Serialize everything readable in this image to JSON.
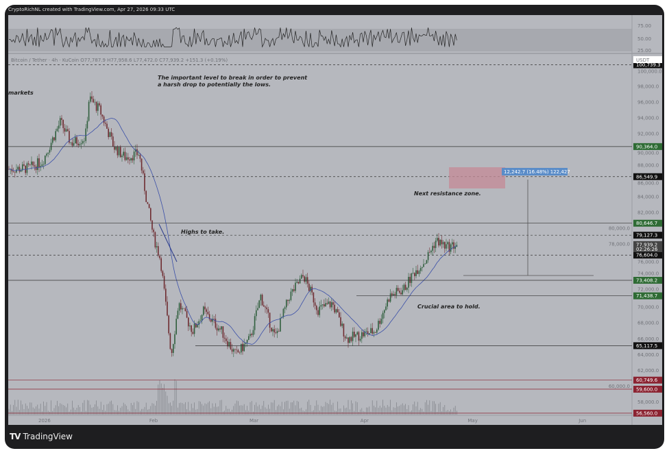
{
  "header": {
    "caption": "CryptoRichNL created with TradingView.com, Apr 27, 2026 09:33 UTC"
  },
  "legend": {
    "text": "Bitcoin / Tether · 4h · KuCoin  O77,787.9  H77,958.6  L77,472.0  C77,939.2  +151.3 (+0.19%)"
  },
  "footer": {
    "brand_mark": "TV",
    "brand": "TradingView"
  },
  "colors": {
    "background": "#b6b8be",
    "frame": "#1e1e20",
    "green_label": "#2e6b34",
    "red_label": "#8b2331",
    "black_label": "#111111",
    "measure_box": "#c48a96",
    "measure_label": "#5a8cc8"
  },
  "annotations": {
    "break_level_1": "The important level to break in order to prevent",
    "break_level_2": "a harsh drop to potentially the lows.",
    "markets": "markets",
    "highs": "Highs to take.",
    "resistance": "Next resistance zone.",
    "crucial": "Crucial area to hold.",
    "measure": "12,242.7 (16.48%) 122,427"
  },
  "price_axis": {
    "currency": "USDT",
    "countdown": "02:26:26"
  },
  "chart_data": {
    "type": "candlestick",
    "symbol": "Bitcoin / Tether",
    "timeframe": "4h",
    "exchange": "KuCoin",
    "ylim": [
      55500,
      101500
    ],
    "yticks": [
      100000,
      98000,
      96000,
      94000,
      92000,
      90000,
      88000,
      86000,
      84000,
      82000,
      80000,
      78000,
      76000,
      74000,
      72000,
      70000,
      68000,
      66000,
      64000,
      62000,
      60000,
      58000
    ],
    "xticks": [
      {
        "label": "2026",
        "date": "2026-01-01"
      },
      {
        "label": "Feb",
        "date": "2026-02-01"
      },
      {
        "label": "Mar",
        "date": "2026-03-01"
      },
      {
        "label": "Apr",
        "date": "2026-04-01"
      },
      {
        "label": "May",
        "date": "2026-05-01"
      },
      {
        "label": "Jun",
        "date": "2026-06-01"
      }
    ],
    "close_path": [
      [
        "2025-12-22",
        87500
      ],
      [
        "2025-12-28",
        87600
      ],
      [
        "2026-01-01",
        88500
      ],
      [
        "2026-01-06",
        93500
      ],
      [
        "2026-01-09",
        90800
      ],
      [
        "2026-01-13",
        91500
      ],
      [
        "2026-01-14",
        96500
      ],
      [
        "2026-01-17",
        95000
      ],
      [
        "2026-01-21",
        90300
      ],
      [
        "2026-01-24",
        89000
      ],
      [
        "2026-01-28",
        89500
      ],
      [
        "2026-01-30",
        83800
      ],
      [
        "2026-02-01",
        79000
      ],
      [
        "2026-02-03",
        76000
      ],
      [
        "2026-02-05",
        68000
      ],
      [
        "2026-02-06",
        64000
      ],
      [
        "2026-02-08",
        70500
      ],
      [
        "2026-02-12",
        67000
      ],
      [
        "2026-02-15",
        69500
      ],
      [
        "2026-02-20",
        67000
      ],
      [
        "2026-02-24",
        63900
      ],
      [
        "2026-02-28",
        66000
      ],
      [
        "2026-03-03",
        71400
      ],
      [
        "2026-03-07",
        66100
      ],
      [
        "2026-03-11",
        71400
      ],
      [
        "2026-03-15",
        74000
      ],
      [
        "2026-03-19",
        69700
      ],
      [
        "2026-03-23",
        70500
      ],
      [
        "2026-03-27",
        66000
      ],
      [
        "2026-03-31",
        66500
      ],
      [
        "2026-04-04",
        67000
      ],
      [
        "2026-04-08",
        71400
      ],
      [
        "2026-04-12",
        72300
      ],
      [
        "2026-04-15",
        74500
      ],
      [
        "2026-04-18",
        75900
      ],
      [
        "2026-04-21",
        78500
      ],
      [
        "2026-04-24",
        77600
      ],
      [
        "2026-04-27",
        77939.2
      ]
    ],
    "levels": [
      {
        "price": "100,739.3",
        "value": 100739.3,
        "style": "dashed",
        "label_color": "black"
      },
      {
        "price": "90,364.0",
        "value": 90364,
        "style": "solid",
        "label_color": "green"
      },
      {
        "price": "86,549.9",
        "value": 86549.9,
        "style": "dashed",
        "label_color": "black"
      },
      {
        "price": "80,646.7",
        "value": 80646.7,
        "style": "solid",
        "label_color": "green"
      },
      {
        "price": "79,127.3",
        "value": 79127.3,
        "style": "dashed",
        "label_color": "black"
      },
      {
        "price": "77,939.2",
        "value": 77939.2,
        "style": "last",
        "label_color": "gray"
      },
      {
        "price": "76,604.0",
        "value": 76604,
        "style": "dashed",
        "label_color": "black"
      },
      {
        "price": "73,408.2",
        "value": 73408.2,
        "style": "solid",
        "label_color": "green"
      },
      {
        "price": "71,438.7",
        "value": 71438.7,
        "style": "solid",
        "label_color": "green"
      },
      {
        "price": "65,117.5",
        "value": 65117.5,
        "style": "solid",
        "label_color": "black"
      },
      {
        "price": "60,749.6",
        "value": 60749.6,
        "style": "solid",
        "label_color": "red"
      },
      {
        "price": "59,600.0",
        "value": 59600,
        "style": "solid",
        "label_color": "red"
      },
      {
        "price": "56,560.0",
        "value": 56560,
        "style": "solid",
        "label_color": "red"
      }
    ],
    "rsi": {
      "yticks": [
        "75.00",
        "50.00",
        "25.00"
      ],
      "band": [
        30,
        70
      ]
    }
  }
}
